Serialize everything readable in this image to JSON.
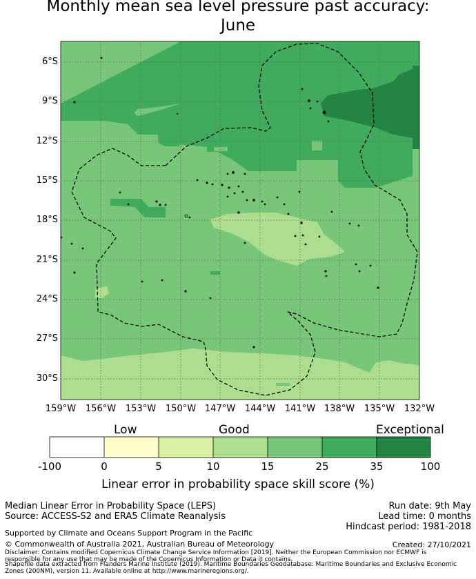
{
  "title": {
    "line1": "Monthly mean sea level pressure past accuracy:",
    "line2": "June"
  },
  "map": {
    "latitude_labels": [
      "6°S",
      "9°S",
      "12°S",
      "15°S",
      "18°S",
      "21°S",
      "24°S",
      "27°S",
      "30°S"
    ],
    "longitude_labels": [
      "159°W",
      "156°W",
      "153°W",
      "150°W",
      "147°W",
      "144°W",
      "141°W",
      "138°W",
      "135°W",
      "132°W"
    ],
    "legend": {
      "categories": [
        "Low",
        "Good",
        "Exceptional"
      ],
      "ticks": [
        "-100",
        "0",
        "5",
        "10",
        "15",
        "25",
        "35",
        "100"
      ],
      "colors": [
        "#ffffff",
        "#ffffcc",
        "#d9f0a3",
        "#addd8e",
        "#78c679",
        "#41ab5d",
        "#238443"
      ],
      "title": "Linear error in probability space skill score (%)"
    }
  },
  "footer": {
    "product": "Median Linear Error in Probability Space (LEPS)",
    "source": "Source: ACCESS-S2 and ERA5 Climate Reanalysis",
    "run_date": "Run date: 9th May",
    "lead_time": "Lead time: 0 months",
    "hindcast": "Hindcast period: 1981-2018",
    "support": "Supported by Climate and Oceans Support Program in the Pacific",
    "copyright": "© Commonwealth of Australia 2021, Australian Bureau of Meteorology",
    "created": "Created: 27/10/2021",
    "disclaimer_1": "Disclaimer: Contains modified Copernicus Climate Change Service Information [2019]. Neither the European Commission nor ECMWF is",
    "disclaimer_2": "responsible for any use that may be made of the Copernicus Information or Data it contains.",
    "disclaimer_3": "Shapefile data extracted from Flanders Marine Institute (2019). Maritime Boundaries Geodatabase: Maritime Boundaries and Exclusive Economic",
    "disclaimer_4": "Zones (200NM), version 11. Available online at http://www.marineregions.org/."
  }
}
